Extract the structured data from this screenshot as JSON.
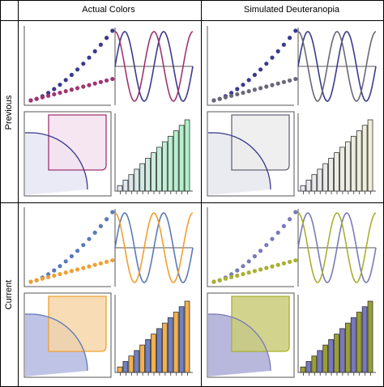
{
  "headers": {
    "col1": "Actual Colors",
    "col2": "Simulated Deuteranopia",
    "row1": "Previous",
    "row2": "Current"
  },
  "palettes": {
    "previous_actual": {
      "a": "#3a3a8c",
      "b": "#a03470",
      "a_fill": "#e8e8f6",
      "b_fill": "#f3e2ee",
      "bar_gradient": [
        "#e6e6f2",
        "#aef3c8"
      ]
    },
    "previous_deutan": {
      "a": "#3a3a8c",
      "b": "#686878",
      "a_fill": "#e8e8f0",
      "b_fill": "#ececec",
      "bar_gradient": [
        "#e8e8f2",
        "#efefd8"
      ]
    },
    "current_actual": {
      "a": "#5a7ab8",
      "b": "#f0a030",
      "a_fill": "#b8bce2",
      "b_fill": "#f6d6a8",
      "bar_a": "#7080c0",
      "bar_b": "#f4b050"
    },
    "current_deutan": {
      "a": "#7a7ab8",
      "b": "#a8b030",
      "a_fill": "#b0b0d8",
      "b_fill": "#cacc7a",
      "bar_a": "#7878c0",
      "bar_b": "#9aa032"
    }
  },
  "chart_data": [
    {
      "type": "scatter",
      "panel": "previous-actual-colors",
      "series": [
        {
          "color": "#3a3a8c",
          "x": [
            1,
            2,
            3,
            4,
            5,
            6,
            7,
            8,
            9,
            10,
            11,
            12,
            13,
            14,
            15
          ],
          "y": [
            0.5,
            1,
            2,
            3,
            4,
            5,
            6.5,
            8,
            9.5,
            11,
            13,
            15,
            17,
            19,
            21.5
          ]
        },
        {
          "color": "#a03470",
          "x": [
            1,
            2,
            3,
            4,
            5,
            6,
            7,
            8,
            9,
            10,
            11,
            12,
            13,
            14,
            15
          ],
          "y": [
            0.5,
            1,
            1.5,
            2,
            2.5,
            3,
            3.5,
            4,
            4.5,
            5,
            5.5,
            6,
            6.5,
            7,
            7.5
          ]
        }
      ]
    },
    {
      "type": "line",
      "panel": "previous-actual-colors",
      "series": [
        {
          "color": "#3a3a8c",
          "function": "sin(x)"
        },
        {
          "color": "#a03470",
          "function": "cos(x)"
        }
      ]
    },
    {
      "type": "bar",
      "panel": "previous-actual-colors",
      "values": [
        1,
        2,
        3,
        4,
        5,
        6,
        7,
        8,
        9,
        10,
        11,
        12,
        13
      ]
    },
    {
      "type": "scatter",
      "panel": "current-actual-colors",
      "series": [
        {
          "color": "#f0a030",
          "x": [
            1,
            2,
            3,
            4,
            5,
            6,
            7,
            8,
            9,
            10,
            11,
            12,
            13,
            14,
            15
          ],
          "y": [
            0.5,
            1,
            2,
            3,
            4,
            5,
            6.5,
            8,
            9.5,
            11,
            13,
            15,
            17,
            19,
            21.5
          ]
        },
        {
          "color": "#5a7ab8",
          "x": [
            1,
            2,
            3,
            4,
            5,
            6,
            7,
            8,
            9,
            10,
            11,
            12,
            13,
            14,
            15
          ],
          "y": [
            0.5,
            1,
            1.5,
            2,
            2.5,
            3,
            3.5,
            4,
            4.5,
            5,
            5.5,
            6,
            6.5,
            7,
            7.5
          ]
        }
      ]
    },
    {
      "type": "line",
      "panel": "current-actual-colors",
      "series": [
        {
          "color": "#f0a030",
          "function": "sin(x)"
        },
        {
          "color": "#5a7ab8",
          "function": "cos(x)"
        }
      ]
    },
    {
      "type": "bar",
      "panel": "current-actual-colors",
      "values": [
        1,
        2,
        3,
        4,
        5,
        6,
        7,
        8,
        9,
        10,
        11,
        12,
        13
      ]
    }
  ]
}
